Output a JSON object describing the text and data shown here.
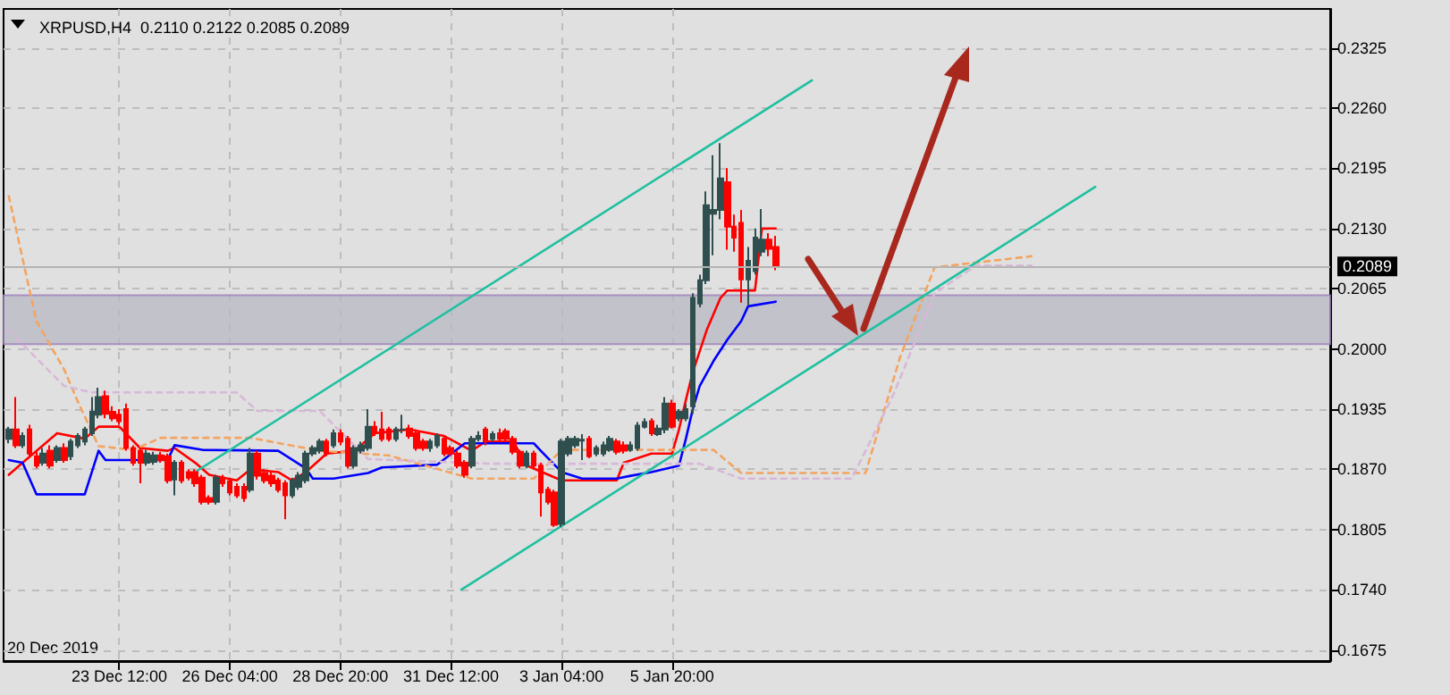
{
  "chart_data": {
    "type": "candlestick",
    "title": "XRPUSD,H4  0.2110 0.2122 0.2085 0.2089",
    "xlim": [
      "2019-12-20T17:00",
      "2020-01-21T17:00"
    ],
    "annotations": [
      "20 Dec 2019"
    ],
    "xticks": [
      {
        "value": "2019-12-23T12:00",
        "label": "23 Dec 12:00"
      },
      {
        "value": "2019-12-26T04:00",
        "label": "26 Dec 04:00"
      },
      {
        "value": "2019-12-28T20:00",
        "label": "28 Dec 20:00"
      },
      {
        "value": "2019-12-31T12:00",
        "label": "31 Dec 12:00"
      },
      {
        "value": "2020-01-03T04:00",
        "label": "3 Jan 04:00"
      },
      {
        "value": "2020-01-05T20:00",
        "label": "5 Jan 20:00"
      }
    ],
    "ylim": [
      0.1663,
      0.2367
    ],
    "yticks": [
      0.1675,
      {
        "value": 0.174,
        "label": "0.1740"
      },
      0.1805,
      {
        "value": 0.187,
        "label": "0.1870"
      },
      0.1935,
      {
        "value": 0.2,
        "label": "0.2000"
      },
      0.2065,
      {
        "value": 0.213,
        "label": "0.2130"
      },
      0.2195,
      {
        "value": 0.226,
        "label": "0.2260"
      },
      0.2325
    ],
    "grid": true,
    "colors": [
      "#2f4f4f",
      "#ff0000",
      "#2f4f4f",
      "#ff0000",
      "#ff0000",
      "#2f4f4f",
      "#ff0000",
      "#2f4f4f",
      "#ff0000",
      "#2f4f4f",
      "#2f4f4f",
      "#2f4f4f",
      "#2f4f4f",
      "#2f4f4f",
      "#ff0000",
      "#ff0000",
      "#ff0000",
      "#ff0000",
      "#ff0000",
      "#ff0000",
      "#2f4f4f",
      "#2f4f4f",
      "#ff0000",
      "#ff0000",
      "#2f4f4f",
      "#ff0000",
      "#ff0000",
      "#ff0000",
      "#ff0000",
      "#ff0000",
      "#2f4f4f",
      "#ff0000",
      "#ff0000",
      "#ff0000",
      "#ff0000",
      "#2f4f4f",
      "#ff0000",
      "#ff0000",
      "#ff0000",
      "#ff0000",
      "#ff0000",
      "#2f4f4f",
      "#2f4f4f",
      "#2f4f4f",
      "#2f4f4f",
      "#2f4f4f",
      "#ff0000",
      "#2f4f4f",
      "#ff0000",
      "#ff0000",
      "#2f4f4f",
      "#2f4f4f",
      "#2f4f4f",
      "#ff0000",
      "#ff0000",
      "#ff0000",
      "#2f4f4f",
      "#2f4f4f",
      "#ff0000",
      "#ff0000",
      "#ff0000",
      "#2f4f4f",
      "#2f4f4f",
      "#ff0000",
      "#ff0000",
      "#ff0000",
      "#ff0000",
      "#2f4f4f",
      "#2f4f4f",
      "#ff0000",
      "#2f4f4f",
      "#ff0000",
      "#ff0000",
      "#ff0000",
      "#ff0000",
      "#2f4f4f",
      "#ff0000",
      "#ff0000",
      "#ff0000",
      "#ff0000",
      "#2f4f4f",
      "#2f4f4f",
      "#2f4f4f",
      "#2f4f4f",
      "#ff0000",
      "#2f4f4f",
      "#2f4f4f",
      "#2f4f4f",
      "#ff0000",
      "#ff0000",
      "#2f4f4f",
      "#2f4f4f",
      "#2f4f4f",
      "#ff0000",
      "#2f4f4f",
      "#2f4f4f",
      "#ff0000",
      "#2f4f4f",
      "#2f4f4f",
      "#2f4f4f",
      "#2f4f4f",
      "#2f4f4f",
      "#2f4f4f",
      "#2f4f4f",
      "#ff0000",
      "#ff0000",
      "#ff0000",
      "#2f4f4f",
      "#2f4f4f",
      "#2f4f4f",
      "#ff0000",
      "#ff0000"
    ],
    "x": [
      "2019-12-20T20:00",
      "2019-12-21T00:00",
      "2019-12-21T04:00",
      "2019-12-21T08:00",
      "2019-12-21T12:00",
      "2019-12-21T16:00",
      "2019-12-21T20:00",
      "2019-12-22T00:00",
      "2019-12-22T04:00",
      "2019-12-22T08:00",
      "2019-12-22T12:00",
      "2019-12-22T16:00",
      "2019-12-22T20:00",
      "2019-12-23T00:00",
      "2019-12-23T04:00",
      "2019-12-23T08:00",
      "2019-12-23T12:00",
      "2019-12-23T16:00",
      "2019-12-23T20:00",
      "2019-12-24T00:00",
      "2019-12-24T04:00",
      "2019-12-24T08:00",
      "2019-12-24T12:00",
      "2019-12-24T16:00",
      "2019-12-24T20:00",
      "2019-12-25T00:00",
      "2019-12-25T04:00",
      "2019-12-25T08:00",
      "2019-12-25T12:00",
      "2019-12-25T16:00",
      "2019-12-25T20:00",
      "2019-12-26T00:00",
      "2019-12-26T04:00",
      "2019-12-26T08:00",
      "2019-12-26T12:00",
      "2019-12-26T16:00",
      "2019-12-26T20:00",
      "2019-12-27T00:00",
      "2019-12-27T04:00",
      "2019-12-27T08:00",
      "2019-12-27T12:00",
      "2019-12-27T16:00",
      "2019-12-27T20:00",
      "2019-12-28T00:00",
      "2019-12-28T04:00",
      "2019-12-28T08:00",
      "2019-12-28T12:00",
      "2019-12-28T16:00",
      "2019-12-28T20:00",
      "2019-12-29T00:00",
      "2019-12-29T04:00",
      "2019-12-29T08:00",
      "2019-12-29T12:00",
      "2019-12-29T16:00",
      "2019-12-29T20:00",
      "2019-12-30T00:00",
      "2019-12-30T04:00",
      "2019-12-30T08:00",
      "2019-12-30T12:00",
      "2019-12-30T16:00",
      "2019-12-30T20:00",
      "2019-12-31T00:00",
      "2019-12-31T04:00",
      "2019-12-31T08:00",
      "2019-12-31T12:00",
      "2019-12-31T16:00",
      "2019-12-31T20:00",
      "2020-01-01T00:00",
      "2020-01-01T04:00",
      "2020-01-01T08:00",
      "2020-01-01T12:00",
      "2020-01-01T16:00",
      "2020-01-01T20:00",
      "2020-01-02T00:00",
      "2020-01-02T04:00",
      "2020-01-02T08:00",
      "2020-01-02T12:00",
      "2020-01-02T16:00",
      "2020-01-02T20:00",
      "2020-01-03T00:00",
      "2020-01-03T04:00",
      "2020-01-03T08:00",
      "2020-01-03T12:00",
      "2020-01-03T16:00",
      "2020-01-03T20:00",
      "2020-01-04T00:00",
      "2020-01-04T04:00",
      "2020-01-04T08:00",
      "2020-01-04T12:00",
      "2020-01-04T16:00",
      "2020-01-04T20:00",
      "2020-01-05T00:00",
      "2020-01-05T04:00",
      "2020-01-05T08:00",
      "2020-01-05T12:00",
      "2020-01-05T16:00",
      "2020-01-05T20:00",
      "2020-01-06T00:00",
      "2020-01-06T04:00",
      "2020-01-06T08:00",
      "2020-01-06T12:00",
      "2020-01-06T16:00",
      "2020-01-06T20:00",
      "2020-01-07T00:00",
      "2020-01-07T04:00",
      "2020-01-07T08:00",
      "2020-01-07T12:00",
      "2020-01-07T16:00",
      "2020-01-07T20:00",
      "2020-01-08T00:00",
      "2020-01-08T04:00",
      "2020-01-08T08:00"
    ],
    "ohlc": [
      [
        0.1903,
        0.1916,
        0.1898,
        0.1913
      ],
      [
        0.1913,
        0.1948,
        0.1893,
        0.1896
      ],
      [
        0.1896,
        0.191,
        0.1893,
        0.1906
      ],
      [
        0.1913,
        0.1918,
        0.1884,
        0.1887
      ],
      [
        0.1884,
        0.1889,
        0.1871,
        0.1874
      ],
      [
        0.1877,
        0.1893,
        0.1874,
        0.1887
      ],
      [
        0.189,
        0.1896,
        0.1871,
        0.1874
      ],
      [
        0.188,
        0.1896,
        0.1877,
        0.1893
      ],
      [
        0.1893,
        0.1898,
        0.1877,
        0.188
      ],
      [
        0.1884,
        0.1903,
        0.188,
        0.19
      ],
      [
        0.1896,
        0.1909,
        0.1893,
        0.1906
      ],
      [
        0.19,
        0.1916,
        0.1896,
        0.1913
      ],
      [
        0.1909,
        0.1948,
        0.1906,
        0.1932
      ],
      [
        0.1929,
        0.1958,
        0.1925,
        0.1948
      ],
      [
        0.1949,
        0.1955,
        0.1925,
        0.193
      ],
      [
        0.1932,
        0.1938,
        0.1922,
        0.1925
      ],
      [
        0.1929,
        0.1935,
        0.1918,
        0.1922
      ],
      [
        0.1935,
        0.1941,
        0.189,
        0.1893
      ],
      [
        0.1893,
        0.1896,
        0.1874,
        0.1877
      ],
      [
        0.189,
        0.1893,
        0.1855,
        0.1877
      ],
      [
        0.1877,
        0.1891,
        0.1874,
        0.1887
      ],
      [
        0.1878,
        0.1889,
        0.1875,
        0.1885
      ],
      [
        0.1885,
        0.1889,
        0.1877,
        0.188
      ],
      [
        0.1884,
        0.1887,
        0.1855,
        0.1858
      ],
      [
        0.1859,
        0.188,
        0.1842,
        0.1877
      ],
      [
        0.1877,
        0.188,
        0.1855,
        0.1858
      ],
      [
        0.1867,
        0.187,
        0.1858,
        0.1861
      ],
      [
        0.1867,
        0.187,
        0.1851,
        0.1855
      ],
      [
        0.1861,
        0.1864,
        0.1832,
        0.1835
      ],
      [
        0.1839,
        0.1842,
        0.1832,
        0.1835
      ],
      [
        0.1835,
        0.1864,
        0.1832,
        0.1861
      ],
      [
        0.1861,
        0.1864,
        0.1851,
        0.1855
      ],
      [
        0.1857,
        0.1861,
        0.1842,
        0.1845
      ],
      [
        0.1851,
        0.1855,
        0.1839,
        0.1842
      ],
      [
        0.1851,
        0.1855,
        0.1835,
        0.1839
      ],
      [
        0.1848,
        0.1893,
        0.1845,
        0.1887
      ],
      [
        0.1887,
        0.189,
        0.1859,
        0.1863
      ],
      [
        0.1866,
        0.187,
        0.1855,
        0.1858
      ],
      [
        0.1863,
        0.1867,
        0.1851,
        0.1855
      ],
      [
        0.1858,
        0.1861,
        0.1845,
        0.1848
      ],
      [
        0.1855,
        0.1858,
        0.1816,
        0.1842
      ],
      [
        0.1842,
        0.1861,
        0.1839,
        0.1858
      ],
      [
        0.1851,
        0.1867,
        0.1848,
        0.1863
      ],
      [
        0.1858,
        0.189,
        0.1855,
        0.1887
      ],
      [
        0.1887,
        0.1896,
        0.1884,
        0.1893
      ],
      [
        0.189,
        0.1903,
        0.1887,
        0.19
      ],
      [
        0.19,
        0.1903,
        0.1884,
        0.1887
      ],
      [
        0.1896,
        0.1913,
        0.1893,
        0.1909
      ],
      [
        0.1909,
        0.1913,
        0.1896,
        0.19
      ],
      [
        0.1903,
        0.1906,
        0.1871,
        0.1874
      ],
      [
        0.1874,
        0.1896,
        0.1871,
        0.1893
      ],
      [
        0.189,
        0.19,
        0.1887,
        0.1896
      ],
      [
        0.1893,
        0.1935,
        0.189,
        0.1916
      ],
      [
        0.1916,
        0.1922,
        0.1906,
        0.1909
      ],
      [
        0.1913,
        0.1932,
        0.19,
        0.1903
      ],
      [
        0.1913,
        0.1916,
        0.19,
        0.1903
      ],
      [
        0.1903,
        0.1916,
        0.19,
        0.1913
      ],
      [
        0.1913,
        0.1929,
        0.1909,
        0.1913
      ],
      [
        0.1914,
        0.1918,
        0.1903,
        0.1906
      ],
      [
        0.1909,
        0.1913,
        0.189,
        0.1893
      ],
      [
        0.19,
        0.1903,
        0.189,
        0.1893
      ],
      [
        0.1893,
        0.1903,
        0.1889,
        0.19
      ],
      [
        0.1896,
        0.1909,
        0.1893,
        0.1906
      ],
      [
        0.1903,
        0.1906,
        0.1884,
        0.1887
      ],
      [
        0.1893,
        0.1896,
        0.1884,
        0.1887
      ],
      [
        0.1887,
        0.189,
        0.1871,
        0.1874
      ],
      [
        0.1877,
        0.188,
        0.1861,
        0.1864
      ],
      [
        0.1874,
        0.1906,
        0.1871,
        0.1903
      ],
      [
        0.1903,
        0.1911,
        0.19,
        0.1906
      ],
      [
        0.1913,
        0.1916,
        0.1896,
        0.19
      ],
      [
        0.1903,
        0.1911,
        0.19,
        0.1908
      ],
      [
        0.1909,
        0.1914,
        0.19,
        0.1903
      ],
      [
        0.1911,
        0.1914,
        0.19,
        0.1903
      ],
      [
        0.1903,
        0.1906,
        0.1886,
        0.1889
      ],
      [
        0.1889,
        0.1891,
        0.1871,
        0.1874
      ],
      [
        0.1874,
        0.189,
        0.1871,
        0.1887
      ],
      [
        0.1887,
        0.189,
        0.1871,
        0.1874
      ],
      [
        0.1874,
        0.1877,
        0.1819,
        0.1845
      ],
      [
        0.1848,
        0.1851,
        0.1832,
        0.1835
      ],
      [
        0.1845,
        0.1848,
        0.1808,
        0.181
      ],
      [
        0.1811,
        0.1903,
        0.1808,
        0.19
      ],
      [
        0.1887,
        0.1906,
        0.1884,
        0.1903
      ],
      [
        0.1896,
        0.1906,
        0.1893,
        0.1903
      ],
      [
        0.1901,
        0.1908,
        0.188,
        0.1902
      ],
      [
        0.1903,
        0.1906,
        0.1882,
        0.1884
      ],
      [
        0.1887,
        0.1896,
        0.1884,
        0.1893
      ],
      [
        0.1887,
        0.19,
        0.1884,
        0.1896
      ],
      [
        0.1891,
        0.1906,
        0.1889,
        0.1903
      ],
      [
        0.19,
        0.1903,
        0.1886,
        0.1889
      ],
      [
        0.1896,
        0.19,
        0.1887,
        0.189
      ],
      [
        0.1891,
        0.19,
        0.1889,
        0.1896
      ],
      [
        0.1893,
        0.1921,
        0.189,
        0.1917
      ],
      [
        0.1916,
        0.1925,
        0.1914,
        0.1921
      ],
      [
        0.1922,
        0.1925,
        0.1906,
        0.1909
      ],
      [
        0.1908,
        0.1918,
        0.1906,
        0.1914
      ],
      [
        0.1913,
        0.1948,
        0.1909,
        0.1941
      ],
      [
        0.1941,
        0.1945,
        0.1914,
        0.1916
      ],
      [
        0.1925,
        0.1935,
        0.1922,
        0.1932
      ],
      [
        0.1925,
        0.1941,
        0.1922,
        0.1935
      ],
      [
        0.1938,
        0.206,
        0.193,
        0.2055
      ],
      [
        0.2049,
        0.208,
        0.2045,
        0.2074
      ],
      [
        0.2074,
        0.217,
        0.207,
        0.2155
      ],
      [
        0.2146,
        0.2209,
        0.2101,
        0.215
      ],
      [
        0.215,
        0.2222,
        0.214,
        0.2184
      ],
      [
        0.218,
        0.2195,
        0.2107,
        0.2132
      ],
      [
        0.2132,
        0.2145,
        0.2105,
        0.212
      ],
      [
        0.2136,
        0.215,
        0.205,
        0.2075
      ],
      [
        0.2075,
        0.211,
        0.2047,
        0.2095
      ],
      [
        0.2084,
        0.213,
        0.208,
        0.212
      ],
      [
        0.2105,
        0.2151,
        0.21,
        0.2118
      ],
      [
        0.2118,
        0.2125,
        0.21,
        0.2108
      ],
      [
        0.211,
        0.2122,
        0.2085,
        0.2089
      ]
    ],
    "series": [
      {
        "type": "line",
        "color": "#ff0000",
        "line_style": "solid",
        "x": [
          "2019-12-20T20:00",
          "2019-12-21T04:00",
          "2019-12-22T00:00",
          "2019-12-22T16:00",
          "2019-12-23T00:00",
          "2019-12-23T12:00",
          "2019-12-24T00:00",
          "2019-12-24T16:00",
          "2019-12-24T20:00",
          "2019-12-25T08:00",
          "2019-12-25T16:00",
          "2019-12-26T08:00",
          "2019-12-26T16:00",
          "2019-12-27T08:00",
          "2019-12-27T16:00",
          "2019-12-28T00:00",
          "2019-12-28T12:00",
          "2019-12-29T04:00",
          "2019-12-29T16:00",
          "2019-12-30T12:00",
          "2019-12-31T08:00",
          "2020-01-01T00:00",
          "2020-01-01T08:00",
          "2020-01-02T00:00",
          "2020-01-02T08:00",
          "2020-01-03T04:00",
          "2020-01-04T12:00",
          "2020-01-04T16:00",
          "2020-01-05T08:00",
          "2020-01-05T20:00",
          "2020-01-06T00:00",
          "2020-01-06T04:00",
          "2020-01-06T08:00",
          "2020-01-06T16:00",
          "2020-01-07T00:00",
          "2020-01-07T04:00",
          "2020-01-07T20:00",
          "2020-01-08T00:00",
          "2020-01-08T08:00"
        ],
        "values": [
          0.1864,
          0.1877,
          0.1909,
          0.1903,
          0.1916,
          0.1916,
          0.1893,
          0.189,
          0.1893,
          0.1877,
          0.1864,
          0.1858,
          0.187,
          0.1867,
          0.1858,
          0.1867,
          0.1887,
          0.189,
          0.1909,
          0.1913,
          0.1906,
          0.189,
          0.19,
          0.19,
          0.1874,
          0.1858,
          0.1858,
          0.1877,
          0.1887,
          0.1887,
          0.1913,
          0.1945,
          0.1975,
          0.202,
          0.2055,
          0.2063,
          0.2063,
          0.213,
          0.213
        ]
      },
      {
        "type": "line",
        "color": "#0000ff",
        "line_style": "solid",
        "x": [
          "2019-12-20T20:00",
          "2019-12-21T04:00",
          "2019-12-21T12:00",
          "2019-12-22T16:00",
          "2019-12-23T00:00",
          "2019-12-23T04:00",
          "2019-12-24T16:00",
          "2019-12-24T20:00",
          "2019-12-25T12:00",
          "2019-12-27T08:00",
          "2019-12-28T00:00",
          "2019-12-28T04:00",
          "2019-12-28T16:00",
          "2019-12-29T12:00",
          "2019-12-29T20:00",
          "2019-12-31T04:00",
          "2019-12-31T20:00",
          "2020-01-02T12:00",
          "2020-01-02T16:00",
          "2020-01-03T04:00",
          "2020-01-03T16:00",
          "2020-01-04T12:00",
          "2020-01-04T20:00",
          "2020-01-05T08:00",
          "2020-01-06T00:00",
          "2020-01-06T04:00",
          "2020-01-06T08:00",
          "2020-01-06T12:00",
          "2020-01-06T20:00",
          "2020-01-07T04:00",
          "2020-01-07T12:00",
          "2020-01-07T16:00",
          "2020-01-08T08:00"
        ],
        "values": [
          0.188,
          0.1877,
          0.1843,
          0.1843,
          0.189,
          0.188,
          0.188,
          0.1896,
          0.1891,
          0.189,
          0.1871,
          0.186,
          0.186,
          0.1866,
          0.1872,
          0.1875,
          0.1898,
          0.1898,
          0.189,
          0.1867,
          0.186,
          0.186,
          0.1863,
          0.1867,
          0.1874,
          0.1903,
          0.1935,
          0.196,
          0.1987,
          0.201,
          0.203,
          0.2046,
          0.2051
        ]
      },
      {
        "type": "line",
        "color": "#f4a460",
        "line_style": "dashed",
        "x": [
          "2019-12-20T20:00",
          "2019-12-21T12:00",
          "2019-12-22T04:00",
          "2019-12-22T12:00",
          "2019-12-23T00:00",
          "2019-12-23T20:00",
          "2019-12-24T12:00",
          "2019-12-26T16:00",
          "2019-12-28T08:00",
          "2019-12-30T00:00",
          "2020-01-01T00:00",
          "2020-01-02T12:00",
          "2020-01-03T04:00",
          "2020-01-06T20:00",
          "2020-01-07T12:00",
          "2020-01-10T12:00",
          "2020-01-11T08:00",
          "2020-01-12T04:00",
          "2020-01-14T12:00"
        ],
        "values": [
          0.2165,
          0.203,
          0.1978,
          0.1943,
          0.1895,
          0.1891,
          0.1904,
          0.1904,
          0.189,
          0.1885,
          0.186,
          0.186,
          0.1891,
          0.1891,
          0.1866,
          0.1866,
          0.1991,
          0.2088,
          0.21
        ]
      },
      {
        "type": "line",
        "color": "#d8b8d8",
        "line_style": "dashed",
        "x": [
          "2019-12-20T20:00",
          "2019-12-22T04:00",
          "2019-12-22T20:00",
          "2019-12-26T08:00",
          "2019-12-26T20:00",
          "2019-12-28T08:00",
          "2019-12-29T12:00",
          "2020-01-01T12:00",
          "2020-01-06T12:00",
          "2020-01-07T12:00",
          "2020-01-10T04:00",
          "2020-01-11T04:00",
          "2020-01-12T04:00",
          "2020-01-13T04:00",
          "2020-01-14T12:00"
        ],
        "values": [
          0.202,
          0.196,
          0.1953,
          0.1953,
          0.1933,
          0.1933,
          0.1881,
          0.1876,
          0.1876,
          0.186,
          0.186,
          0.195,
          0.206,
          0.209,
          0.209
        ]
      },
      {
        "type": "line",
        "color": "#20c0a0",
        "line_style": "solid",
        "x": [
          "2019-12-25T07:00",
          "2020-01-09T05:00"
        ],
        "values": [
          0.1866,
          0.229
        ]
      },
      {
        "type": "line",
        "color": "#20c0a0",
        "line_style": "solid",
        "x": [
          "2019-12-31T18:00",
          "2020-01-16T01:00"
        ],
        "values": [
          0.174,
          0.2175
        ]
      }
    ],
    "ref_lines": [
      {
        "axis": "y",
        "value": 0.2089,
        "label": "0.2089",
        "color": "#b4b4b4"
      }
    ],
    "bands": [
      {
        "axis": "y",
        "from": 0.2005,
        "to": 0.2058,
        "color": "#b8b8c4"
      }
    ],
    "marker": "none"
  }
}
